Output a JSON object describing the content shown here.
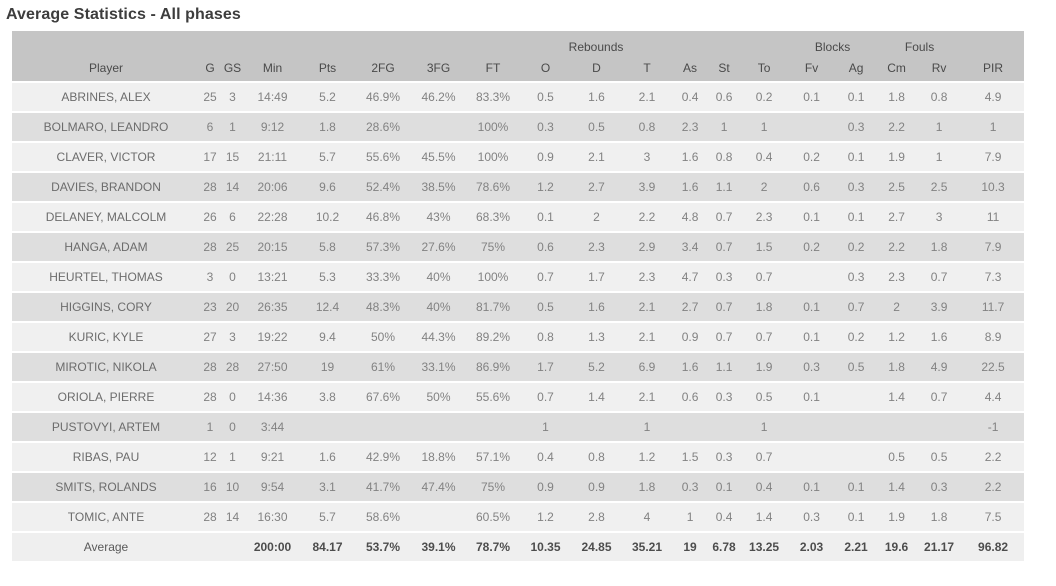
{
  "page_title": "Average Statistics - All phases",
  "colors": {
    "header_bg": "#c5c5c5",
    "row_light": "#f0f0f0",
    "row_dark": "#dedede",
    "title_text": "#3d3d3d",
    "header_text": "#4a4a4a",
    "cell_text": "#828282",
    "average_text": "#4d4d4d"
  },
  "table": {
    "group_headers": [
      {
        "label": "",
        "span": 8
      },
      {
        "label": "Rebounds",
        "span": 3
      },
      {
        "label": "",
        "span": 3
      },
      {
        "label": "Blocks",
        "span": 2
      },
      {
        "label": "Fouls",
        "span": 2
      },
      {
        "label": "",
        "span": 1
      }
    ],
    "columns": [
      "Player",
      "G",
      "GS",
      "Min",
      "Pts",
      "2FG",
      "3FG",
      "FT",
      "O",
      "D",
      "T",
      "As",
      "St",
      "To",
      "Fv",
      "Ag",
      "Cm",
      "Rv",
      "PIR"
    ],
    "rows": [
      [
        "ABRINES, ALEX",
        "25",
        "3",
        "14:49",
        "5.2",
        "46.9%",
        "46.2%",
        "83.3%",
        "0.5",
        "1.6",
        "2.1",
        "0.4",
        "0.6",
        "0.2",
        "0.1",
        "0.1",
        "1.8",
        "0.8",
        "4.9"
      ],
      [
        "BOLMARO, LEANDRO",
        "6",
        "1",
        "9:12",
        "1.8",
        "28.6%",
        "",
        "100%",
        "0.3",
        "0.5",
        "0.8",
        "2.3",
        "1",
        "1",
        "",
        "0.3",
        "2.2",
        "1",
        "1"
      ],
      [
        "CLAVER, VICTOR",
        "17",
        "15",
        "21:11",
        "5.7",
        "55.6%",
        "45.5%",
        "100%",
        "0.9",
        "2.1",
        "3",
        "1.6",
        "0.8",
        "0.4",
        "0.2",
        "0.1",
        "1.9",
        "1",
        "7.9"
      ],
      [
        "DAVIES, BRANDON",
        "28",
        "14",
        "20:06",
        "9.6",
        "52.4%",
        "38.5%",
        "78.6%",
        "1.2",
        "2.7",
        "3.9",
        "1.6",
        "1.1",
        "2",
        "0.6",
        "0.3",
        "2.5",
        "2.5",
        "10.3"
      ],
      [
        "DELANEY, MALCOLM",
        "26",
        "6",
        "22:28",
        "10.2",
        "46.8%",
        "43%",
        "68.3%",
        "0.1",
        "2",
        "2.2",
        "4.8",
        "0.7",
        "2.3",
        "0.1",
        "0.1",
        "2.7",
        "3",
        "11"
      ],
      [
        "HANGA, ADAM",
        "28",
        "25",
        "20:15",
        "5.8",
        "57.3%",
        "27.6%",
        "75%",
        "0.6",
        "2.3",
        "2.9",
        "3.4",
        "0.7",
        "1.5",
        "0.2",
        "0.2",
        "2.2",
        "1.8",
        "7.9"
      ],
      [
        "HEURTEL, THOMAS",
        "3",
        "0",
        "13:21",
        "5.3",
        "33.3%",
        "40%",
        "100%",
        "0.7",
        "1.7",
        "2.3",
        "4.7",
        "0.3",
        "0.7",
        "",
        "0.3",
        "2.3",
        "0.7",
        "7.3"
      ],
      [
        "HIGGINS, CORY",
        "23",
        "20",
        "26:35",
        "12.4",
        "48.3%",
        "40%",
        "81.7%",
        "0.5",
        "1.6",
        "2.1",
        "2.7",
        "0.7",
        "1.8",
        "0.1",
        "0.7",
        "2",
        "3.9",
        "11.7"
      ],
      [
        "KURIC, KYLE",
        "27",
        "3",
        "19:22",
        "9.4",
        "50%",
        "44.3%",
        "89.2%",
        "0.8",
        "1.3",
        "2.1",
        "0.9",
        "0.7",
        "0.7",
        "0.1",
        "0.2",
        "1.2",
        "1.6",
        "8.9"
      ],
      [
        "MIROTIC, NIKOLA",
        "28",
        "28",
        "27:50",
        "19",
        "61%",
        "33.1%",
        "86.9%",
        "1.7",
        "5.2",
        "6.9",
        "1.6",
        "1.1",
        "1.9",
        "0.3",
        "0.5",
        "1.8",
        "4.9",
        "22.5"
      ],
      [
        "ORIOLA, PIERRE",
        "28",
        "0",
        "14:36",
        "3.8",
        "67.6%",
        "50%",
        "55.6%",
        "0.7",
        "1.4",
        "2.1",
        "0.6",
        "0.3",
        "0.5",
        "0.1",
        "",
        "1.4",
        "0.7",
        "4.4"
      ],
      [
        "PUSTOVYI, ARTEM",
        "1",
        "0",
        "3:44",
        "",
        "",
        "",
        "",
        "1",
        "",
        "1",
        "",
        "",
        "1",
        "",
        "",
        "",
        "",
        "-1"
      ],
      [
        "RIBAS, PAU",
        "12",
        "1",
        "9:21",
        "1.6",
        "42.9%",
        "18.8%",
        "57.1%",
        "0.4",
        "0.8",
        "1.2",
        "1.5",
        "0.3",
        "0.7",
        "",
        "",
        "0.5",
        "0.5",
        "2.2"
      ],
      [
        "SMITS, ROLANDS",
        "16",
        "10",
        "9:54",
        "3.1",
        "41.7%",
        "47.4%",
        "75%",
        "0.9",
        "0.9",
        "1.8",
        "0.3",
        "0.1",
        "0.4",
        "0.1",
        "0.1",
        "1.4",
        "0.3",
        "2.2"
      ],
      [
        "TOMIC, ANTE",
        "28",
        "14",
        "16:30",
        "5.7",
        "58.6%",
        "",
        "60.5%",
        "1.2",
        "2.8",
        "4",
        "1",
        "0.4",
        "1.4",
        "0.3",
        "0.1",
        "1.9",
        "1.8",
        "7.5"
      ]
    ],
    "average_row": [
      "Average",
      "",
      "",
      "200:00",
      "84.17",
      "53.7%",
      "39.1%",
      "78.7%",
      "10.35",
      "24.85",
      "35.21",
      "19",
      "6.78",
      "13.25",
      "2.03",
      "2.21",
      "19.6",
      "21.17",
      "96.82"
    ]
  }
}
